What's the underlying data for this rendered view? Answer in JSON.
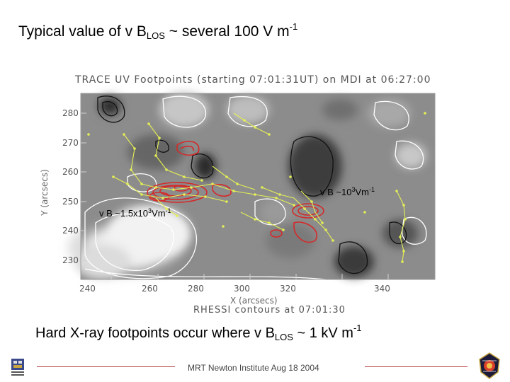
{
  "title": {
    "pre": "Typical value of v B",
    "sub": "LOS",
    "mid": " ~ several 100 V m",
    "sup": "-1"
  },
  "figure": {
    "header": "TRACE UV Footpoints (starting 07:01:31UT) on MDI at 06:27:00",
    "ylabel": "Y (arcsecs)",
    "xlabel": "X (arcsecs)",
    "xcaption": "RHESSI contours at 07:01:30",
    "yticks": [
      "280",
      "270",
      "260",
      "250",
      "240",
      "230"
    ],
    "xticks": [
      "240",
      "260",
      "280",
      "300",
      "320",
      "340"
    ],
    "annotation_right": {
      "pre": "v B ~10",
      "sup1": "3",
      "mid": "Vm",
      "sup2": "-1"
    },
    "annotation_left": {
      "pre": "v B ~1.5x10",
      "sup1": "3",
      "mid": "Vm",
      "sup2": "-1"
    },
    "colors": {
      "background": "#8a8a8a",
      "rhessi_contour": "#d42a2a",
      "trace_points": "#e4ef55",
      "mdi_white": "#ffffff",
      "mdi_black": "#111111"
    }
  },
  "caption": {
    "pre": "Hard X-ray footpoints occur where v B",
    "sub": "LOS",
    "mid": " ~ 1 kV m",
    "sup": "-1"
  },
  "footer": {
    "text": "MRT Newton Institute Aug 18 2004",
    "line_color": "#b33a3a",
    "logo_left_icon": "university-crest-icon",
    "logo_right_icon": "mission-patch-icon"
  }
}
